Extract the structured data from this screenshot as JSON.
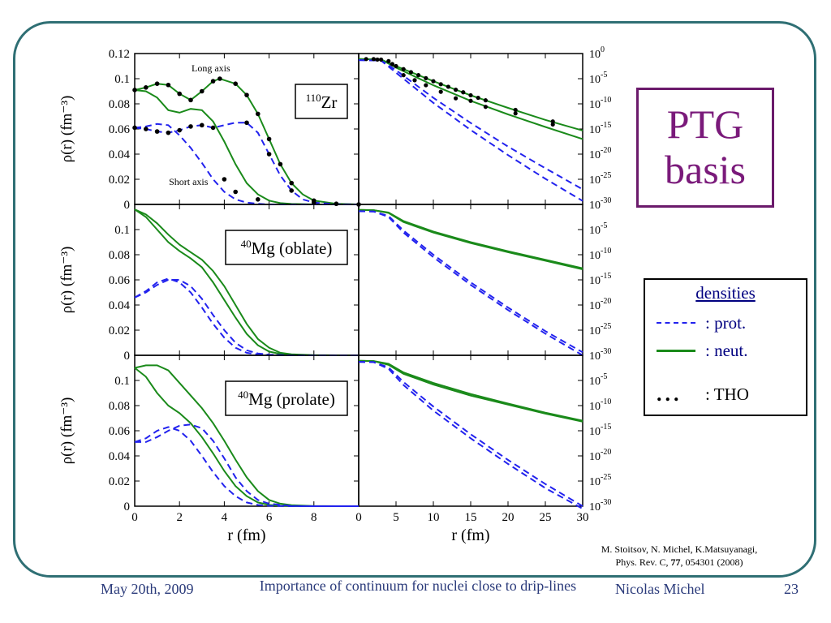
{
  "ptg_box": {
    "line1": "PTG",
    "line2": "basis"
  },
  "legend": {
    "title": "densities",
    "items": [
      {
        "style": "dashed",
        "color": "#2222ee",
        "label": ": prot."
      },
      {
        "style": "solid",
        "color": "#1a8a1a",
        "label": ": neut."
      },
      {
        "style": "dots",
        "color": "#000000",
        "label": ":  THO"
      }
    ]
  },
  "citation": {
    "line1": "M. Stoitsov, N. Michel, K.Matsuyanagi,",
    "line2_prefix": "Phys. Rev. C, ",
    "volume": "77",
    "line2_suffix": ", 054301 (2008)"
  },
  "footer": {
    "date": "May 20th, 2009",
    "title": "Importance of continuum for nuclei close to drip-lines",
    "author": "Nicolas Michel",
    "page": "23"
  },
  "chart_data": {
    "type": "line",
    "colors": {
      "proton": "#2222ee",
      "neutron": "#1a8a1a",
      "tho": "#000000"
    },
    "xlabel": "r (fm)",
    "ylabel": "ρ(r) (fm⁻³)",
    "left_panels": {
      "xlim": [
        0,
        10
      ],
      "xticks": [
        0,
        2,
        4,
        6,
        8
      ],
      "ylim": [
        0,
        0.12
      ],
      "yticks": [
        "0",
        "0.02",
        "0.04",
        "0.06",
        "0.08",
        "0.1",
        "0.12"
      ]
    },
    "right_panels": {
      "xlim": [
        0,
        30
      ],
      "xticks": [
        0,
        5,
        10,
        15,
        20,
        25,
        30
      ],
      "ylog": true,
      "ylim_exp": [
        -30,
        0
      ],
      "yticks_exp": [
        "0",
        "-5",
        "-10",
        "-15",
        "-20",
        "-25",
        "-30"
      ]
    },
    "rows": [
      {
        "nucleus_label": "110Zr",
        "annotations": [
          "Long axis",
          "Short axis"
        ],
        "linear": [
          {
            "species": "neutron",
            "x": [
              0,
              0.5,
              1,
              1.5,
              2,
              2.5,
              3,
              3.5,
              3.8,
              4.5,
              5,
              5.5,
              6,
              6.5,
              7,
              7.5,
              8,
              9,
              10
            ],
            "y": [
              0.091,
              0.093,
              0.096,
              0.095,
              0.088,
              0.083,
              0.09,
              0.098,
              0.1,
              0.096,
              0.087,
              0.072,
              0.052,
              0.032,
              0.017,
              0.008,
              0.003,
              0.0005,
              0
            ]
          },
          {
            "species": "neutron",
            "x": [
              0,
              0.5,
              1,
              1.5,
              2,
              2.5,
              3,
              3.5,
              4,
              4.5,
              5,
              5.5,
              6,
              6.5,
              7,
              8,
              9,
              10
            ],
            "y": [
              0.091,
              0.09,
              0.085,
              0.075,
              0.073,
              0.076,
              0.075,
              0.066,
              0.05,
              0.032,
              0.017,
              0.008,
              0.003,
              0.001,
              0.0004,
              0,
              0,
              0
            ]
          },
          {
            "species": "proton",
            "x": [
              0,
              0.5,
              1,
              1.5,
              2,
              2.5,
              3,
              3.5,
              4,
              4.5,
              5,
              5.5,
              6,
              6.5,
              7,
              7.5,
              8,
              9,
              10
            ],
            "y": [
              0.061,
              0.06,
              0.058,
              0.057,
              0.059,
              0.062,
              0.063,
              0.061,
              0.063,
              0.065,
              0.065,
              0.057,
              0.04,
              0.023,
              0.011,
              0.004,
              0.0015,
              0.0002,
              0
            ]
          },
          {
            "species": "proton",
            "x": [
              0,
              0.5,
              1,
              1.5,
              2,
              2.5,
              3,
              3.5,
              4,
              4.5,
              5,
              5.5,
              6,
              7,
              8,
              10
            ],
            "y": [
              0.061,
              0.062,
              0.064,
              0.063,
              0.055,
              0.045,
              0.033,
              0.02,
              0.01,
              0.004,
              0.0015,
              0.0005,
              0,
              0,
              0,
              0
            ]
          }
        ],
        "log": [
          {
            "species": "neutron",
            "x": [
              0,
              3,
              5,
              10,
              15,
              20,
              25,
              30
            ],
            "y_exp": [
              -1.1,
              -1.2,
              -2.5,
              -5.5,
              -8.3,
              -10.8,
              -13.2,
              -15.3
            ]
          },
          {
            "species": "neutron",
            "x": [
              0,
              3,
              5,
              10,
              15,
              20,
              25,
              30
            ],
            "y_exp": [
              -1.1,
              -1.2,
              -2.8,
              -6.3,
              -9.4,
              -12.1,
              -14.6,
              -17
            ]
          },
          {
            "species": "proton",
            "x": [
              0,
              3,
              5,
              10,
              15,
              20,
              25,
              30
            ],
            "y_exp": [
              -1.3,
              -1.4,
              -3.3,
              -8.8,
              -13.8,
              -18.5,
              -22.8,
              -27
            ]
          },
          {
            "species": "proton",
            "x": [
              0,
              3,
              5,
              10,
              15,
              20,
              25,
              30
            ],
            "y_exp": [
              -1.3,
              -1.4,
              -3.8,
              -9.8,
              -15.2,
              -20.2,
              -24.9,
              -29.3
            ]
          }
        ],
        "tho_linear": {
          "x": [
            0,
            0.5,
            1,
            1.5,
            2,
            2.5,
            3,
            3.5,
            3.8,
            4.5,
            5,
            5.5,
            6,
            6.5,
            7,
            8,
            9,
            10,
            0,
            0.5,
            1,
            1.5,
            2,
            2.5,
            3,
            3.5,
            4,
            4.5,
            5,
            5.5,
            6,
            7,
            8
          ],
          "y": [
            0.091,
            0.093,
            0.096,
            0.095,
            0.088,
            0.083,
            0.09,
            0.098,
            0.1,
            0.096,
            0.087,
            0.072,
            0.052,
            0.032,
            0.017,
            0.003,
            0.0005,
            0,
            0.061,
            0.06,
            0.058,
            0.057,
            0.059,
            0.062,
            0.063,
            0.061,
            0.02,
            0.01,
            0.065,
            0.004,
            0.04,
            0.011,
            0.0015
          ]
        },
        "tho_log": {
          "x": [
            1,
            2,
            3,
            4,
            5,
            6,
            7,
            8,
            9,
            10,
            11,
            12,
            13,
            14,
            15,
            16,
            17,
            21,
            26,
            2.5,
            4.5,
            6,
            7.5,
            9,
            11,
            13,
            15,
            17,
            21,
            26
          ],
          "y_exp": [
            -1.1,
            -1.1,
            -1.2,
            -1.5,
            -2.5,
            -3.1,
            -3.7,
            -4.3,
            -4.9,
            -5.5,
            -6.1,
            -6.6,
            -7.2,
            -7.7,
            -8.3,
            -8.8,
            -9.3,
            -11.2,
            -13.5,
            -1.2,
            -2.1,
            -4.3,
            -5.3,
            -6.3,
            -7.6,
            -8.9,
            -9.4,
            -10.6,
            -11.9,
            -14.1
          ]
        }
      },
      {
        "nucleus_label": "40Mg (oblate)",
        "linear": [
          {
            "species": "neutron",
            "x": [
              0,
              0.5,
              1,
              1.5,
              2,
              2.5,
              3,
              3.5,
              4,
              4.5,
              5,
              5.5,
              6,
              6.5,
              7,
              8,
              9,
              10
            ],
            "y": [
              0.116,
              0.112,
              0.105,
              0.096,
              0.088,
              0.082,
              0.076,
              0.067,
              0.055,
              0.04,
              0.025,
              0.013,
              0.006,
              0.002,
              0.0008,
              0.0001,
              0,
              0
            ]
          },
          {
            "species": "neutron",
            "x": [
              0,
              0.5,
              1,
              1.5,
              2,
              2.5,
              3,
              3.5,
              4,
              4.5,
              5,
              5.5,
              6,
              6.5,
              7,
              8,
              9,
              10
            ],
            "y": [
              0.116,
              0.11,
              0.1,
              0.09,
              0.083,
              0.077,
              0.07,
              0.058,
              0.044,
              0.03,
              0.017,
              0.008,
              0.003,
              0.001,
              0.0003,
              0,
              0,
              0
            ]
          },
          {
            "species": "proton",
            "x": [
              0,
              0.5,
              1,
              1.5,
              2,
              2.5,
              3,
              3.5,
              4,
              4.5,
              5,
              5.5,
              6,
              7,
              8,
              10
            ],
            "y": [
              0.046,
              0.05,
              0.056,
              0.06,
              0.06,
              0.055,
              0.045,
              0.032,
              0.02,
              0.01,
              0.004,
              0.0015,
              0.0005,
              0,
              0,
              0
            ]
          },
          {
            "species": "proton",
            "x": [
              0,
              0.5,
              1,
              1.5,
              2,
              2.5,
              3,
              3.5,
              4,
              4.5,
              5,
              5.5,
              6,
              7,
              8,
              10
            ],
            "y": [
              0.046,
              0.051,
              0.058,
              0.061,
              0.058,
              0.05,
              0.038,
              0.025,
              0.014,
              0.006,
              0.002,
              0.0007,
              0.0002,
              0,
              0,
              0
            ]
          }
        ],
        "log": [
          {
            "species": "neutron",
            "x": [
              0,
              2,
              4,
              6,
              10,
              15,
              20,
              25,
              30
            ],
            "y_exp": [
              -1.1,
              -1.15,
              -1.6,
              -3.3,
              -5.4,
              -7.5,
              -9.3,
              -11,
              -12.7
            ]
          },
          {
            "species": "neutron",
            "x": [
              0,
              2,
              4,
              6,
              10,
              15,
              20,
              25,
              30
            ],
            "y_exp": [
              -1.1,
              -1.15,
              -1.7,
              -3.5,
              -5.6,
              -7.7,
              -9.5,
              -11.2,
              -12.9
            ]
          },
          {
            "species": "proton",
            "x": [
              0,
              2,
              4,
              6,
              10,
              15,
              20,
              25,
              30
            ],
            "y_exp": [
              -1.35,
              -1.4,
              -2.3,
              -5.2,
              -10,
              -15.5,
              -20.5,
              -25.2,
              -29.4
            ]
          },
          {
            "species": "proton",
            "x": [
              0,
              2,
              4,
              6,
              10,
              15,
              20,
              25,
              30
            ],
            "y_exp": [
              -1.35,
              -1.4,
              -2.5,
              -5.6,
              -10.5,
              -16,
              -21,
              -25.7,
              -30
            ]
          }
        ]
      },
      {
        "nucleus_label": "40Mg (prolate)",
        "linear": [
          {
            "species": "neutron",
            "x": [
              0,
              0.5,
              1,
              1.5,
              2,
              2.5,
              3,
              3.5,
              4,
              4.5,
              5,
              5.5,
              6,
              6.5,
              7,
              8,
              9,
              10
            ],
            "y": [
              0.11,
              0.112,
              0.112,
              0.108,
              0.098,
              0.088,
              0.078,
              0.066,
              0.052,
              0.037,
              0.023,
              0.012,
              0.005,
              0.002,
              0.0008,
              0.0001,
              0,
              0
            ]
          },
          {
            "species": "neutron",
            "x": [
              0,
              0.5,
              1,
              1.5,
              2,
              2.5,
              3,
              3.5,
              4,
              4.5,
              5,
              5.5,
              6,
              6.5,
              7,
              8,
              9,
              10
            ],
            "y": [
              0.11,
              0.103,
              0.09,
              0.08,
              0.074,
              0.066,
              0.055,
              0.042,
              0.028,
              0.016,
              0.008,
              0.003,
              0.001,
              0.0004,
              0.0001,
              0,
              0,
              0
            ]
          },
          {
            "species": "proton",
            "x": [
              0,
              0.5,
              1,
              1.5,
              2,
              2.5,
              3,
              3.5,
              4,
              4.5,
              5,
              5.5,
              6,
              7,
              8,
              10
            ],
            "y": [
              0.051,
              0.054,
              0.06,
              0.063,
              0.06,
              0.052,
              0.04,
              0.027,
              0.016,
              0.008,
              0.003,
              0.001,
              0.0003,
              0,
              0,
              0
            ]
          },
          {
            "species": "proton",
            "x": [
              0,
              0.5,
              1,
              1.5,
              2,
              2.5,
              3,
              3.5,
              4,
              4.5,
              5,
              5.5,
              6,
              7,
              8,
              10
            ],
            "y": [
              0.051,
              0.051,
              0.055,
              0.06,
              0.064,
              0.065,
              0.062,
              0.052,
              0.038,
              0.023,
              0.012,
              0.005,
              0.002,
              0.0002,
              0,
              0
            ]
          }
        ],
        "log": [
          {
            "species": "neutron",
            "x": [
              0,
              2,
              4,
              6,
              10,
              15,
              20,
              25,
              30
            ],
            "y_exp": [
              -1.1,
              -1.15,
              -1.7,
              -3.4,
              -5.5,
              -7.7,
              -9.6,
              -11.4,
              -13
            ]
          },
          {
            "species": "neutron",
            "x": [
              0,
              2,
              4,
              6,
              10,
              15,
              20,
              25,
              30
            ],
            "y_exp": [
              -1.1,
              -1.15,
              -1.9,
              -3.7,
              -5.8,
              -8,
              -9.8,
              -11.6,
              -13.2
            ]
          },
          {
            "species": "proton",
            "x": [
              0,
              2,
              4,
              6,
              10,
              15,
              20,
              25,
              30
            ],
            "y_exp": [
              -1.3,
              -1.35,
              -2.4,
              -5.3,
              -10.2,
              -15.7,
              -20.8,
              -25.6,
              -30
            ]
          },
          {
            "species": "proton",
            "x": [
              0,
              2,
              4,
              6,
              10,
              15,
              20,
              25,
              30
            ],
            "y_exp": [
              -1.3,
              -1.35,
              -2.7,
              -5.9,
              -11,
              -16.5,
              -21.6,
              -26.4,
              -30.5
            ]
          }
        ]
      }
    ]
  }
}
